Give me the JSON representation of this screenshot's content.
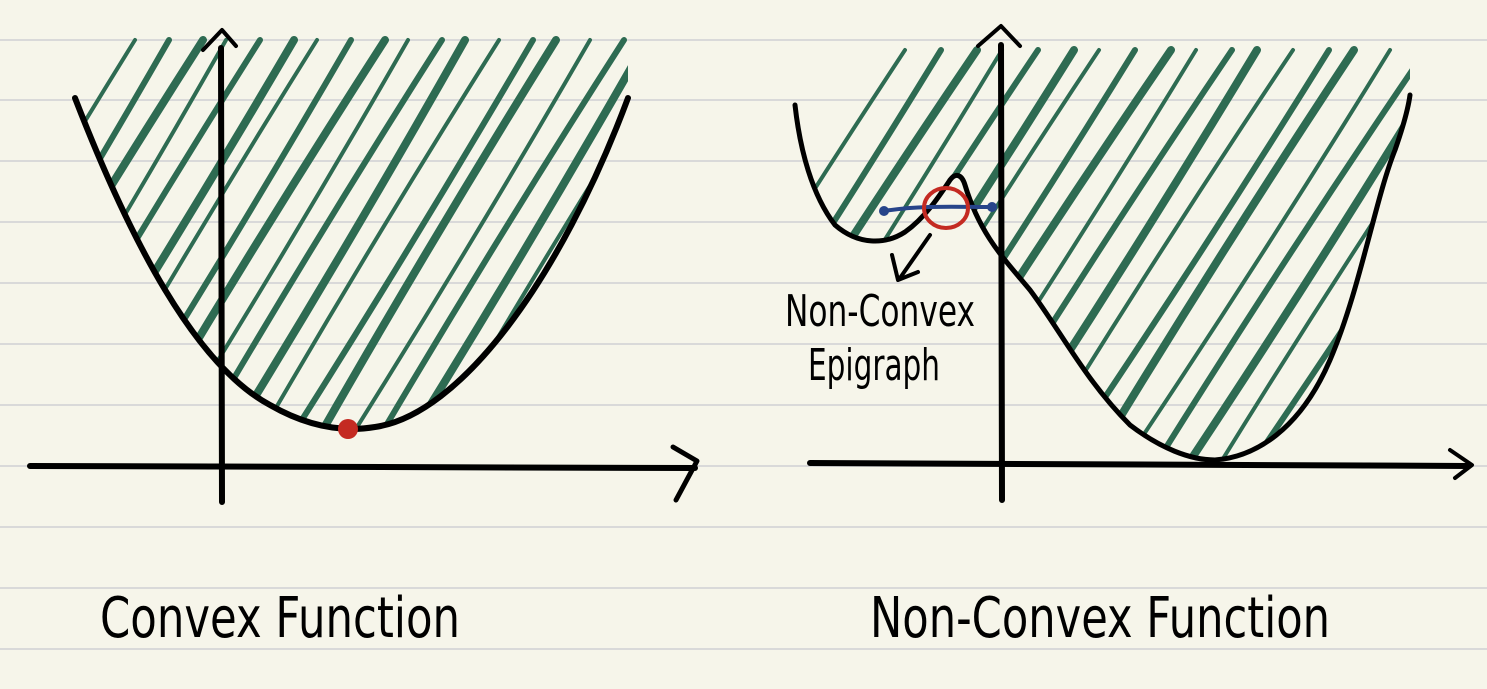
{
  "colors": {
    "paper": "#f6f5ea",
    "ruled_line": "#d9d9d9",
    "ink": "#000000",
    "hatch": "#2e6b52",
    "minimum_dot": "#c42a22",
    "nonconvex_circle": "#c42a22",
    "chord": "#27448a"
  },
  "left_panel": {
    "caption": "Convex Function",
    "icon": "minimum-point-dot"
  },
  "right_panel": {
    "caption": "Non-Convex Function",
    "annotation_line1": "Non-Convex",
    "annotation_line2": "Epigraph",
    "icon": "annotation-arrow"
  }
}
